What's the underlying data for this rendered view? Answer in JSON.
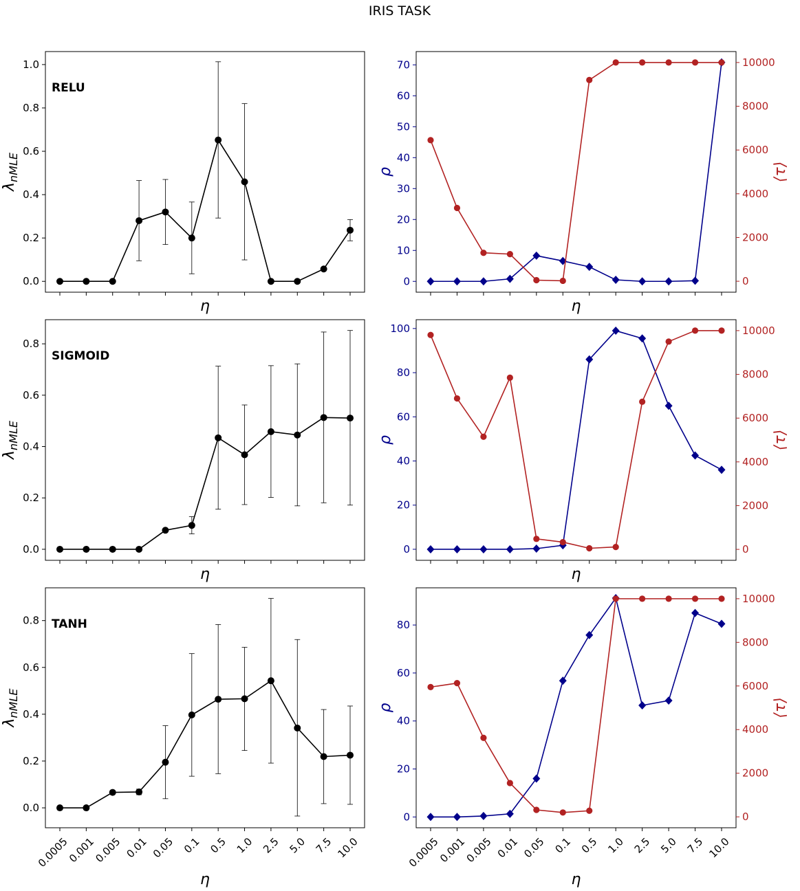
{
  "title": "IRIS TASK",
  "colors": {
    "black": "#000000",
    "blue": "#00008b",
    "red": "#b22222"
  },
  "chart_data": [
    {
      "type": "line",
      "panel": "RELU",
      "side": "left",
      "categories": [
        "0.0005",
        "0.001",
        "0.005",
        "0.01",
        "0.05",
        "0.1",
        "0.5",
        "1.0",
        "2.5",
        "5.0",
        "7.5",
        "10.0"
      ],
      "series": [
        {
          "name": "lambda_nMLE",
          "values": [
            0.0,
            0.0,
            0.0,
            0.28,
            0.32,
            0.2,
            0.652,
            0.459,
            0.0,
            0.0,
            0.057,
            0.236
          ],
          "err_low": [
            0.0,
            0.0,
            0.0,
            0.095,
            0.17,
            0.035,
            0.292,
            0.099,
            0.0,
            0.0,
            0.057,
            0.187
          ],
          "err_high": [
            0.0,
            0.0,
            0.0,
            0.465,
            0.47,
            0.366,
            1.013,
            0.82,
            0.0,
            0.0,
            0.057,
            0.285
          ]
        }
      ],
      "ylabel": "λ",
      "ylabel_sub": "nMLE",
      "xlabel": "η",
      "ylim": [
        -0.05,
        1.06
      ],
      "yticks": [
        0.0,
        0.2,
        0.4,
        0.6,
        0.8,
        1.0
      ],
      "ytick_labels": [
        "0.0",
        "0.2",
        "0.4",
        "0.6",
        "0.8",
        "1.0"
      ],
      "show_xtick_labels": false
    },
    {
      "type": "line",
      "panel": "RELU",
      "side": "right",
      "categories": [
        "0.0005",
        "0.001",
        "0.005",
        "0.01",
        "0.05",
        "0.1",
        "0.5",
        "1.0",
        "2.5",
        "5.0",
        "7.5",
        "10.0"
      ],
      "series": [
        {
          "name": "rho",
          "axis": "left",
          "marker": "diamond",
          "values": [
            0.0,
            0.0,
            0.0,
            0.8,
            8.3,
            6.6,
            4.7,
            0.5,
            0.0,
            0.0,
            0.2,
            70.8
          ]
        },
        {
          "name": "tau",
          "axis": "right",
          "marker": "circle",
          "values": [
            6450,
            3350,
            1300,
            1240,
            50,
            20,
            9200,
            10000,
            10000,
            10000,
            10000,
            10000
          ]
        }
      ],
      "ylabel": "ρ",
      "ylabel_right": "⟨τ⟩",
      "xlabel": "η",
      "ylim": [
        -3.5,
        74.3
      ],
      "yticks": [
        0,
        10,
        20,
        30,
        40,
        50,
        60,
        70
      ],
      "ytick_labels": [
        "0",
        "10",
        "20",
        "30",
        "40",
        "50",
        "60",
        "70"
      ],
      "ylim_right": [
        -500,
        10500
      ],
      "yticks_right": [
        0,
        2000,
        4000,
        6000,
        8000,
        10000
      ],
      "ytick_labels_right": [
        "0",
        "2000",
        "4000",
        "6000",
        "8000",
        "10000"
      ],
      "show_xtick_labels": false
    },
    {
      "type": "line",
      "panel": "SIGMOID",
      "side": "left",
      "categories": [
        "0.0005",
        "0.001",
        "0.005",
        "0.01",
        "0.05",
        "0.1",
        "0.5",
        "1.0",
        "2.5",
        "5.0",
        "7.5",
        "10.0"
      ],
      "series": [
        {
          "name": "lambda_nMLE",
          "values": [
            0.0,
            0.0,
            0.0,
            0.0,
            0.074,
            0.093,
            0.434,
            0.368,
            0.458,
            0.445,
            0.513,
            0.511
          ],
          "err_low": [
            0.0,
            0.0,
            0.0,
            0.0,
            0.074,
            0.06,
            0.156,
            0.174,
            0.202,
            0.169,
            0.181,
            0.172
          ],
          "err_high": [
            0.0,
            0.0,
            0.0,
            0.0,
            0.074,
            0.127,
            0.713,
            0.562,
            0.715,
            0.722,
            0.846,
            0.852
          ]
        }
      ],
      "ylabel": "λ",
      "ylabel_sub": "nMLE",
      "xlabel": "η",
      "ylim": [
        -0.043,
        0.894
      ],
      "yticks": [
        0.0,
        0.2,
        0.4,
        0.6,
        0.8
      ],
      "ytick_labels": [
        "0.0",
        "0.2",
        "0.4",
        "0.6",
        "0.8"
      ],
      "show_xtick_labels": false
    },
    {
      "type": "line",
      "panel": "SIGMOID",
      "side": "right",
      "categories": [
        "0.0005",
        "0.001",
        "0.005",
        "0.01",
        "0.05",
        "0.1",
        "0.5",
        "1.0",
        "2.5",
        "5.0",
        "7.5",
        "10.0"
      ],
      "series": [
        {
          "name": "rho",
          "axis": "left",
          "marker": "diamond",
          "values": [
            0.0,
            0.0,
            0.0,
            0.0,
            0.3,
            1.8,
            86.0,
            99.0,
            95.5,
            65.0,
            42.5,
            36.0
          ]
        },
        {
          "name": "tau",
          "axis": "right",
          "marker": "circle",
          "values": [
            9800,
            6900,
            5150,
            7850,
            480,
            330,
            50,
            110,
            6750,
            9500,
            10000,
            10000
          ]
        }
      ],
      "ylabel": "ρ",
      "ylabel_right": "⟨τ⟩",
      "xlabel": "η",
      "ylim": [
        -5,
        104
      ],
      "yticks": [
        0,
        20,
        40,
        60,
        80,
        100
      ],
      "ytick_labels": [
        "0",
        "20",
        "40",
        "60",
        "80",
        "100"
      ],
      "ylim_right": [
        -500,
        10500
      ],
      "yticks_right": [
        0,
        2000,
        4000,
        6000,
        8000,
        10000
      ],
      "ytick_labels_right": [
        "0",
        "2000",
        "4000",
        "6000",
        "8000",
        "10000"
      ],
      "show_xtick_labels": false
    },
    {
      "type": "line",
      "panel": "TANH",
      "side": "left",
      "categories": [
        "0.0005",
        "0.001",
        "0.005",
        "0.01",
        "0.05",
        "0.1",
        "0.5",
        "1.0",
        "2.5",
        "5.0",
        "7.5",
        "10.0"
      ],
      "series": [
        {
          "name": "lambda_nMLE",
          "values": [
            0.0,
            0.0,
            0.066,
            0.068,
            0.195,
            0.397,
            0.464,
            0.466,
            0.543,
            0.341,
            0.219,
            0.225
          ],
          "err_low": [
            0.0,
            0.0,
            0.066,
            0.056,
            0.039,
            0.135,
            0.146,
            0.245,
            0.191,
            -0.035,
            0.018,
            0.015
          ],
          "err_high": [
            0.0,
            0.0,
            0.066,
            0.08,
            0.351,
            0.659,
            0.783,
            0.686,
            0.895,
            0.719,
            0.42,
            0.435
          ]
        }
      ],
      "ylabel": "λ",
      "ylabel_sub": "nMLE",
      "xlabel": "η",
      "ylim": [
        -0.085,
        0.94
      ],
      "yticks": [
        0.0,
        0.2,
        0.4,
        0.6,
        0.8
      ],
      "ytick_labels": [
        "0.0",
        "0.2",
        "0.4",
        "0.6",
        "0.8"
      ],
      "show_xtick_labels": true
    },
    {
      "type": "line",
      "panel": "TANH",
      "side": "right",
      "categories": [
        "0.0005",
        "0.001",
        "0.005",
        "0.01",
        "0.05",
        "0.1",
        "0.5",
        "1.0",
        "2.5",
        "5.0",
        "7.5",
        "10.0"
      ],
      "series": [
        {
          "name": "rho",
          "axis": "left",
          "marker": "diamond",
          "values": [
            0.0,
            0.0,
            0.4,
            1.3,
            16.0,
            56.8,
            75.8,
            91.2,
            46.5,
            48.5,
            85.0,
            80.5
          ]
        },
        {
          "name": "tau",
          "axis": "right",
          "marker": "circle",
          "values": [
            5950,
            6130,
            3620,
            1550,
            320,
            200,
            280,
            10000,
            10000,
            10000,
            10000,
            10000
          ]
        }
      ],
      "ylabel": "ρ",
      "ylabel_right": "⟨τ⟩",
      "xlabel": "η",
      "ylim": [
        -4.5,
        95.5
      ],
      "yticks": [
        0,
        20,
        40,
        60,
        80
      ],
      "ytick_labels": [
        "0",
        "20",
        "40",
        "60",
        "80"
      ],
      "ylim_right": [
        -500,
        10500
      ],
      "yticks_right": [
        0,
        2000,
        4000,
        6000,
        8000,
        10000
      ],
      "ytick_labels_right": [
        "0",
        "2000",
        "4000",
        "6000",
        "8000",
        "10000"
      ],
      "show_xtick_labels": true
    }
  ]
}
